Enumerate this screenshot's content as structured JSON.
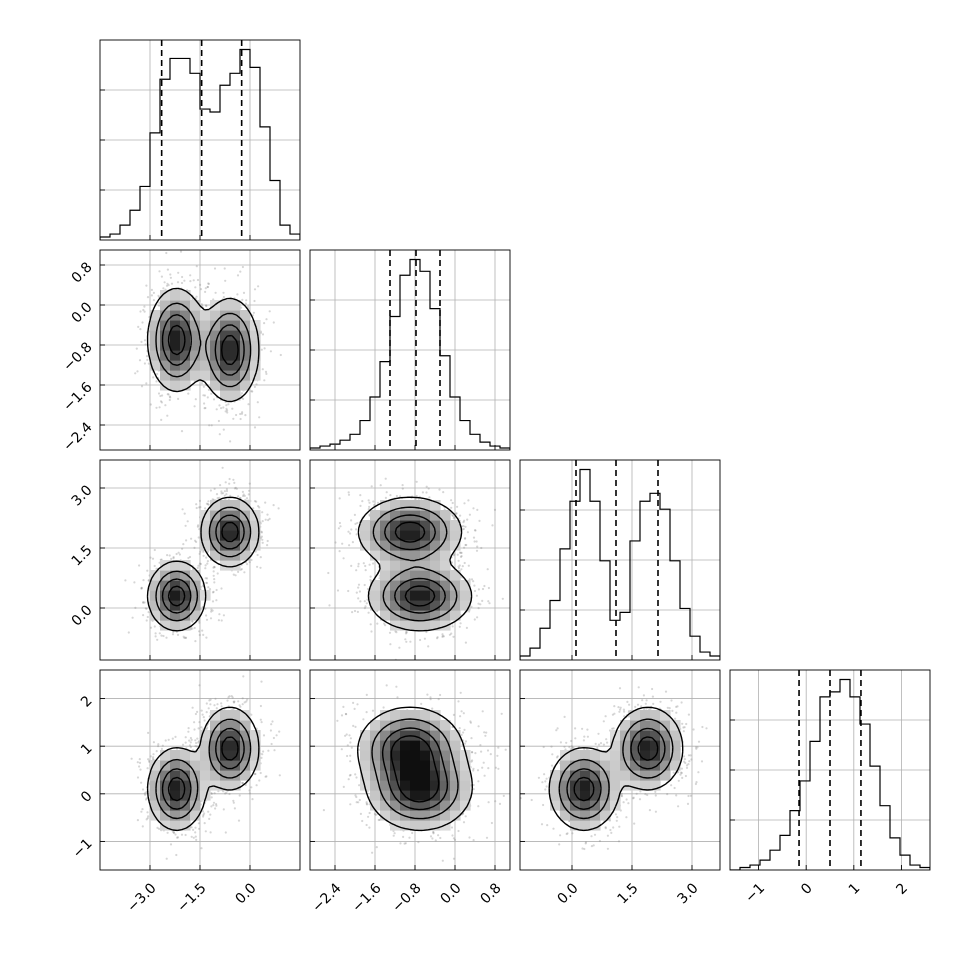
{
  "chart_data": {
    "type": "corner",
    "params": [
      {
        "range": [
          -4.5,
          1.5
        ],
        "ticks": [
          -3.0,
          -1.5,
          0.0
        ],
        "tick_labels": [
          "−3.0",
          "−1.5",
          "0.0"
        ],
        "quantiles": [
          -2.65,
          -1.45,
          -0.25
        ]
      },
      {
        "range": [
          -2.9,
          1.1
        ],
        "ticks": [
          -2.4,
          -1.6,
          -0.8,
          0.0,
          0.8
        ],
        "tick_labels": [
          "−2.4",
          "−1.6",
          "−0.8",
          "0.0",
          "0.8"
        ],
        "quantiles": [
          -1.3,
          -0.78,
          -0.3
        ]
      },
      {
        "range": [
          -1.3,
          3.7
        ],
        "ticks": [
          0.0,
          1.5,
          3.0
        ],
        "tick_labels": [
          "0.0",
          "1.5",
          "3.0"
        ],
        "quantiles": [
          0.1,
          1.1,
          2.15
        ]
      },
      {
        "range": [
          -1.6,
          2.6
        ],
        "ticks": [
          -1,
          0,
          1,
          2
        ],
        "tick_labels": [
          "−1",
          "0",
          "1",
          "2"
        ],
        "quantiles": [
          -0.15,
          0.5,
          1.15
        ]
      }
    ],
    "histograms": [
      {
        "counts": [
          1,
          2,
          5,
          10,
          18,
          36,
          54,
          61,
          61,
          56,
          44,
          43,
          52,
          56,
          64,
          58,
          38,
          20,
          5,
          2
        ]
      },
      {
        "counts": [
          1,
          2,
          3,
          5,
          8,
          15,
          27,
          45,
          68,
          89,
          97,
          91,
          72,
          48,
          27,
          15,
          8,
          4,
          2,
          1
        ]
      },
      {
        "counts": [
          1,
          3,
          8,
          15,
          28,
          40,
          48,
          40,
          25,
          10,
          12,
          30,
          40,
          42,
          38,
          25,
          13,
          6,
          2,
          1
        ]
      },
      {
        "counts": [
          0,
          1,
          2,
          4,
          8,
          14,
          24,
          36,
          52,
          70,
          72,
          77,
          70,
          59,
          42,
          26,
          13,
          6,
          2,
          1
        ]
      }
    ],
    "modes": [
      {
        "center": [
          -2.2,
          -0.7,
          0.3,
          0.1
        ]
      },
      {
        "center": [
          -0.6,
          -0.9,
          1.9,
          0.95
        ]
      }
    ],
    "contour_levels": [
      "0.5",
      "1.0",
      "1.5",
      "2.0"
    ]
  }
}
